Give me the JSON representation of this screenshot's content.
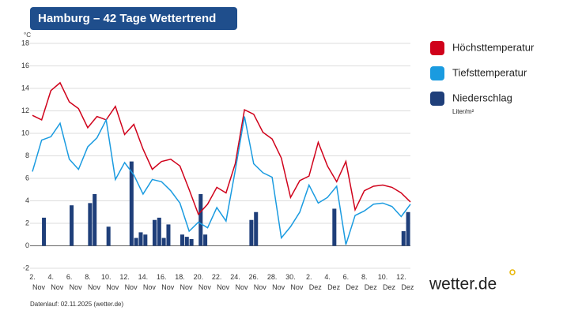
{
  "chart_data": {
    "type": "line",
    "title": "Hamburg – 42 Tage Wettertrend",
    "y_unit": "°C",
    "footer": "Datenlauf: 02.11.2025 (wetter.de)",
    "logo": "wetter.de",
    "categories": [
      "2. Nov",
      null,
      "4. Nov",
      null,
      "6. Nov",
      null,
      "8. Nov",
      null,
      "10. Nov",
      null,
      "12. Nov",
      null,
      "14. Nov",
      null,
      "16. Nov",
      null,
      "18. Nov",
      null,
      "20. Nov",
      null,
      "22. Nov",
      null,
      "24. Nov",
      null,
      "26. Nov",
      null,
      "28. Nov",
      null,
      "30. Nov",
      null,
      "2. Dez",
      null,
      "4. Dez",
      null,
      "6. Dez",
      null,
      "8. Dez",
      null,
      "10. Dez",
      null,
      "12. Dez",
      null
    ],
    "series": [
      {
        "name": "Höchsttemperatur",
        "color": "#d0021b",
        "values": [
          11.6,
          11.2,
          13.8,
          14.5,
          12.8,
          12.2,
          10.5,
          11.5,
          11.2,
          12.4,
          9.9,
          10.8,
          8.6,
          6.8,
          7.5,
          7.7,
          7.1,
          5.0,
          2.8,
          3.7,
          5.2,
          4.7,
          7.3,
          12.1,
          11.7,
          10.1,
          9.5,
          7.8,
          4.3,
          5.8,
          6.2,
          9.2,
          7.1,
          5.7,
          7.5,
          3.2,
          4.9,
          5.3,
          5.4,
          5.2,
          4.7,
          3.9
        ]
      },
      {
        "name": "Tiefsttemperatur",
        "color": "#1a9be0",
        "values": [
          6.6,
          9.4,
          9.7,
          10.9,
          7.7,
          6.8,
          8.8,
          9.6,
          11.2,
          5.9,
          7.4,
          6.3,
          4.6,
          5.9,
          5.7,
          4.9,
          3.8,
          1.3,
          2.1,
          1.6,
          3.4,
          2.2,
          6.7,
          11.5,
          7.3,
          6.5,
          6.1,
          0.7,
          1.7,
          3.0,
          5.4,
          3.8,
          4.3,
          5.3,
          0.1,
          2.7,
          3.1,
          3.7,
          3.8,
          3.5,
          2.6,
          3.7
        ]
      }
    ],
    "precipitation": {
      "name": "Niederschlag",
      "unit": "Liter/m²",
      "color": "#1f3f7a",
      "values": [
        0,
        0,
        2.5,
        0,
        0,
        0,
        0,
        0,
        3.6,
        0,
        0,
        0,
        3.8,
        4.6,
        0,
        0,
        1.7,
        0,
        0,
        0,
        0,
        7.5,
        0.7,
        1.2,
        1.0,
        0,
        2.3,
        2.5,
        0.7,
        1.9,
        0,
        0,
        1.0,
        0.8,
        0.6,
        0,
        4.6,
        1.0,
        0,
        0,
        0,
        0,
        0,
        0,
        0,
        0,
        0,
        2.3,
        3.0,
        0,
        0,
        0,
        0,
        0,
        0,
        0,
        0,
        0,
        0,
        0,
        0,
        0,
        0,
        0,
        0,
        3.3,
        0,
        0,
        0,
        0,
        0,
        0,
        0,
        0,
        0,
        0,
        0,
        0,
        0,
        0,
        1.3,
        3.0,
        0,
        0
      ]
    },
    "ylim": [
      -2,
      18
    ],
    "yticks": [
      -2,
      0,
      2,
      4,
      6,
      8,
      10,
      12,
      14,
      16,
      18
    ],
    "grid": true
  }
}
